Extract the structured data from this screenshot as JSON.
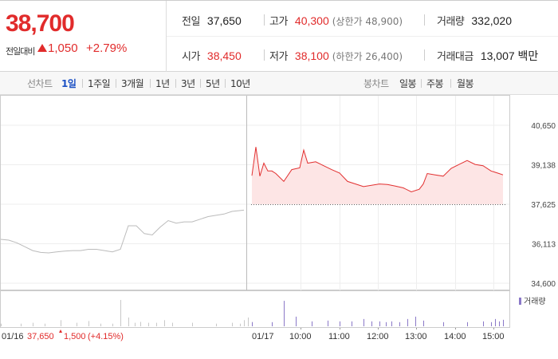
{
  "quote": {
    "price": "38,700",
    "change_label": "전일대비",
    "change_amount": "1,050",
    "change_pct": "+2.79%"
  },
  "stats": {
    "prev_close": {
      "label": "전일",
      "value": "37,650"
    },
    "high": {
      "label": "고가",
      "value": "40,300",
      "sub": "(상한가 48,900)"
    },
    "volume": {
      "label": "거래량",
      "value": "332,020"
    },
    "open": {
      "label": "시가",
      "value": "38,450"
    },
    "low": {
      "label": "저가",
      "value": "38,100",
      "sub": "(하한가 26,400)"
    },
    "turnover": {
      "label": "거래대금",
      "value": "13,007 백만"
    }
  },
  "tabs": {
    "line_label": "선차트",
    "line_items": [
      "1일",
      "1주일",
      "3개월",
      "1년",
      "3년",
      "5년",
      "10년"
    ],
    "line_active": "1일",
    "candle_label": "봉차트",
    "candle_items": [
      "일봉",
      "주봉",
      "월봉"
    ]
  },
  "chart_data": {
    "type": "line",
    "y_ticks": [
      "40,650",
      "39,138",
      "37,625",
      "36,113",
      "34,600"
    ],
    "ylim": [
      34600,
      40650
    ],
    "reference_price": 37625,
    "x_ticks": [
      "01/17",
      "10:00",
      "11:00",
      "12:00",
      "13:00",
      "14:00",
      "15:00"
    ],
    "prev_day_date": "01/16",
    "volume_legend": "거래량",
    "prev_day_summary": {
      "close": "37,650",
      "change": "1,500",
      "pct": "(+4.15%)"
    },
    "series": [
      {
        "x": [
          0,
          10,
          20,
          30,
          40,
          50,
          60,
          70,
          80,
          90,
          100,
          110,
          120,
          130,
          140,
          150,
          160,
          170,
          180,
          190,
          200,
          210,
          220,
          230,
          240,
          250,
          260,
          270,
          280,
          290,
          305
        ],
        "values": [
          36280,
          36250,
          36150,
          36000,
          35850,
          35780,
          35760,
          35800,
          35830,
          35850,
          35850,
          35900,
          35900,
          35850,
          35800,
          35900,
          36800,
          36800,
          36500,
          36450,
          36750,
          37000,
          36900,
          36950,
          36950,
          37050,
          37150,
          37200,
          37250,
          37350,
          37400
        ]
      },
      {
        "x": [
          0,
          5,
          10,
          15,
          20,
          25,
          30,
          40,
          50,
          60,
          65,
          70,
          80,
          90,
          100,
          110,
          120,
          140,
          160,
          170,
          180,
          190,
          200,
          210,
          215,
          220,
          230,
          240,
          250,
          260,
          270,
          280,
          290,
          300,
          305,
          310,
          315
        ],
        "values": [
          38720,
          39820,
          38700,
          39200,
          38900,
          38900,
          38800,
          38500,
          38950,
          39020,
          39700,
          39200,
          39250,
          39100,
          38950,
          38820,
          38500,
          38300,
          38400,
          38380,
          38320,
          38250,
          38100,
          38200,
          38400,
          38800,
          38750,
          38700,
          39000,
          39150,
          39300,
          39150,
          39100,
          38900,
          38850,
          38800,
          38750
        ]
      }
    ],
    "volume": {
      "x": [
        0,
        25,
        40,
        55,
        75,
        95,
        110,
        125,
        140,
        150,
        160,
        168,
        175,
        185,
        195,
        205,
        215,
        240,
        270,
        290,
        300,
        305,
        310,
        315
      ],
      "values": [
        3,
        3,
        4,
        3,
        7,
        4,
        6,
        3,
        3,
        30,
        10,
        4,
        5,
        4,
        4,
        7,
        4,
        4,
        3,
        4,
        3,
        7,
        10,
        5
      ]
    }
  }
}
